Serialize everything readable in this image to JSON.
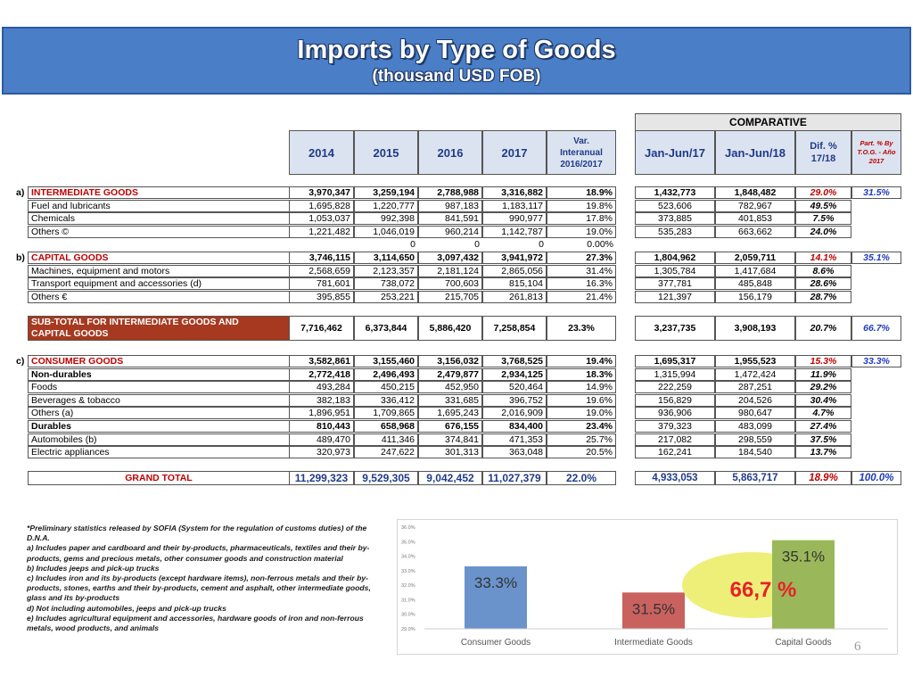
{
  "title": {
    "line1": "Imports by Type of Goods",
    "line2": "(thousand USD FOB)"
  },
  "header": {
    "comparative": "COMPARATIVE",
    "cols": [
      "2014",
      "2015",
      "2016",
      "2017"
    ],
    "var_line1": "Var.",
    "var_line2": "Interanual",
    "var_line3": "2016/2017",
    "jan17": "Jan-Jun/17",
    "jan18": "Jan-Jun/18",
    "dif_line1": "Dif. %",
    "dif_line2": "17/18",
    "part_line1": "Part. % By",
    "part_line2": "T.O.G. - Año",
    "part_line3": "2017"
  },
  "rows": [
    {
      "prefix": "a)",
      "label": "INTERMEDIATE GOODS",
      "v": [
        "3,970,347",
        "3,259,194",
        "2,788,988",
        "3,316,882",
        "18.9%"
      ],
      "c": [
        "1,432,773",
        "1,848,482",
        "29.0%",
        "31.5%"
      ]
    },
    {
      "prefix": "",
      "label": "Fuel and lubricants",
      "v": [
        "1,695,828",
        "1,220,777",
        "987,183",
        "1,183,117",
        "19.8%"
      ],
      "c": [
        "523,606",
        "782,967",
        "49.5%",
        ""
      ]
    },
    {
      "prefix": "",
      "label": "Chemicals",
      "v": [
        "1,053,037",
        "992,398",
        "841,591",
        "990,977",
        "17.8%"
      ],
      "c": [
        "373,885",
        "401,853",
        "7.5%",
        ""
      ]
    },
    {
      "prefix": "",
      "label": "Others ©",
      "v": [
        "1,221,482",
        "1,046,019",
        "960,214",
        "1,142,787",
        "19.0%"
      ],
      "c": [
        "535,283",
        "663,662",
        "24.0%",
        ""
      ]
    },
    {
      "prefix": "",
      "label": "",
      "v": [
        "",
        "0",
        "0",
        "0",
        "0.00%"
      ],
      "c": [
        "",
        "",
        "",
        ""
      ]
    },
    {
      "prefix": "b)",
      "label": "CAPITAL GOODS",
      "v": [
        "3,746,115",
        "3,114,650",
        "3,097,432",
        "3,941,972",
        "27.3%"
      ],
      "c": [
        "1,804,962",
        "2,059,711",
        "14.1%",
        "35.1%"
      ]
    },
    {
      "prefix": "",
      "label": "Machines, equipment and motors",
      "v": [
        "2,568,659",
        "2,123,357",
        "2,181,124",
        "2,865,056",
        "31.4%"
      ],
      "c": [
        "1,305,784",
        "1,417,684",
        "8.6%",
        ""
      ]
    },
    {
      "prefix": "",
      "label": "Transport equipment and accessories (d)",
      "v": [
        "781,601",
        "738,072",
        "700,603",
        "815,104",
        "16.3%"
      ],
      "c": [
        "377,781",
        "485,848",
        "28.6%",
        ""
      ]
    },
    {
      "prefix": "",
      "label": "Others €",
      "v": [
        "395,855",
        "253,221",
        "215,705",
        "261,813",
        "21.4%"
      ],
      "c": [
        "121,397",
        "156,179",
        "28.7%",
        ""
      ]
    }
  ],
  "subtotal": {
    "label_line1": "SUB-TOTAL FOR INTERMEDIATE GOODS AND",
    "label_line2": "CAPITAL GOODS",
    "v": [
      "7,716,462",
      "6,373,844",
      "5,886,420",
      "7,258,854",
      "23.3%"
    ],
    "c": [
      "3,237,735",
      "3,908,193",
      "20.7%",
      "66.7%"
    ]
  },
  "rows2": [
    {
      "prefix": "c)",
      "label": "CONSUMER GOODS",
      "v": [
        "3,582,861",
        "3,155,460",
        "3,156,032",
        "3,768,525",
        "19.4%"
      ],
      "c": [
        "1,695,317",
        "1,955,523",
        "15.3%",
        "33.3%"
      ]
    },
    {
      "prefix": "",
      "label": "Non-durables",
      "v": [
        "2,772,418",
        "2,496,493",
        "2,479,877",
        "2,934,125",
        "18.3%"
      ],
      "c": [
        "1,315,994",
        "1,472,424",
        "11.9%",
        ""
      ]
    },
    {
      "prefix": "",
      "label": "Foods",
      "v": [
        "493,284",
        "450,215",
        "452,950",
        "520,464",
        "14.9%"
      ],
      "c": [
        "222,259",
        "287,251",
        "29.2%",
        ""
      ]
    },
    {
      "prefix": "",
      "label": "Beverages & tobacco",
      "v": [
        "382,183",
        "336,412",
        "331,685",
        "396,752",
        "19.6%"
      ],
      "c": [
        "156,829",
        "204,526",
        "30.4%",
        ""
      ]
    },
    {
      "prefix": "",
      "label": "Others (a)",
      "v": [
        "1,896,951",
        "1,709,865",
        "1,695,243",
        "2,016,909",
        "19.0%"
      ],
      "c": [
        "936,906",
        "980,647",
        "4.7%",
        ""
      ]
    },
    {
      "prefix": "",
      "label": "Durables",
      "v": [
        "810,443",
        "658,968",
        "676,155",
        "834,400",
        "23.4%"
      ],
      "c": [
        "379,323",
        "483,099",
        "27.4%",
        ""
      ]
    },
    {
      "prefix": "",
      "label": "Automobiles (b)",
      "v": [
        "489,470",
        "411,346",
        "374,841",
        "471,353",
        "25.7%"
      ],
      "c": [
        "217,082",
        "298,559",
        "37.5%",
        ""
      ]
    },
    {
      "prefix": "",
      "label": "Electric appliances",
      "v": [
        "320,973",
        "247,622",
        "301,313",
        "363,048",
        "20.5%"
      ],
      "c": [
        "162,241",
        "184,540",
        "13.7%",
        ""
      ]
    }
  ],
  "grand_total": {
    "label": "GRAND TOTAL",
    "v": [
      "11,299,323",
      "9,529,305",
      "9,042,452",
      "11,027,379",
      "22.0%"
    ],
    "c": [
      "4,933,053",
      "5,863,717",
      "18.9%",
      "100.0%"
    ]
  },
  "notes": [
    "*Preliminary statistics released by SOFIA (System for the regulation of customs duties) of the D.N.A.",
    "a) Includes paper and cardboard and their by-products, pharmaceuticals, textiles and their by-products, gems and precious metals, other consumer goods and construction material",
    "b) Includes jeeps and pick-up trucks",
    "c) Includes iron and its by-products (except hardware items), non-ferrous metals and their by-products, stones, earths and their by-products, cement and asphalt, other intermediate goods, glass and its by-products",
    "d) Not including automobiles, jeeps and pick-up trucks",
    "e) Includes agricultural equipment and accessories, hardware goods of iron and non-ferrous metals, wood products, and animals"
  ],
  "chart_data": {
    "type": "bar",
    "categories": [
      "Consumer Goods",
      "Intermediate Goods",
      "Capital Goods"
    ],
    "values": [
      33.3,
      31.5,
      35.1
    ],
    "data_labels": [
      "33.3%",
      "31.5%",
      "35.1%"
    ],
    "bar_colors": [
      "#6a93cc",
      "#c9625e",
      "#9ab85a"
    ],
    "yticks": [
      "29.0%",
      "30.0%",
      "31.0%",
      "32.0%",
      "33.0%",
      "34.0%",
      "35.0%",
      "36.0%"
    ],
    "ylim": [
      29,
      36
    ],
    "annotation": "66,7 %",
    "annotation_color": "#e8202a",
    "highlight_color": "#e8ea4c"
  },
  "page_number": "6"
}
